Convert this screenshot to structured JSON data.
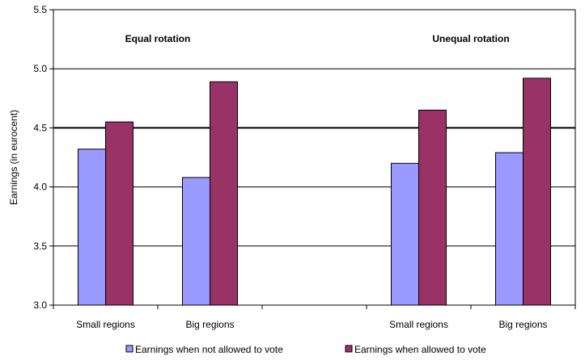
{
  "chart_data": {
    "type": "bar",
    "ylabel": "Earnings (in eurocent)",
    "ylim": [
      3.0,
      5.5
    ],
    "yticks": [
      "3.0",
      "3.5",
      "4.0",
      "4.5",
      "5.0",
      "5.5"
    ],
    "emphasized_line": 4.5,
    "categories": [
      "Small regions",
      "Big regions",
      "Small regions",
      "Big regions"
    ],
    "groups": [
      {
        "label": "Equal rotation",
        "categories": [
          0,
          1
        ]
      },
      {
        "label": "Unequal rotation",
        "categories": [
          2,
          3
        ]
      }
    ],
    "series": [
      {
        "name": "Earnings when not allowed to vote",
        "color": "#9999ff",
        "values": [
          4.32,
          4.08,
          4.2,
          4.29
        ]
      },
      {
        "name": "Earnings when allowed to vote",
        "color": "#993366",
        "values": [
          4.55,
          4.89,
          4.65,
          4.92
        ]
      }
    ],
    "grid": true,
    "legend_position": "bottom"
  }
}
